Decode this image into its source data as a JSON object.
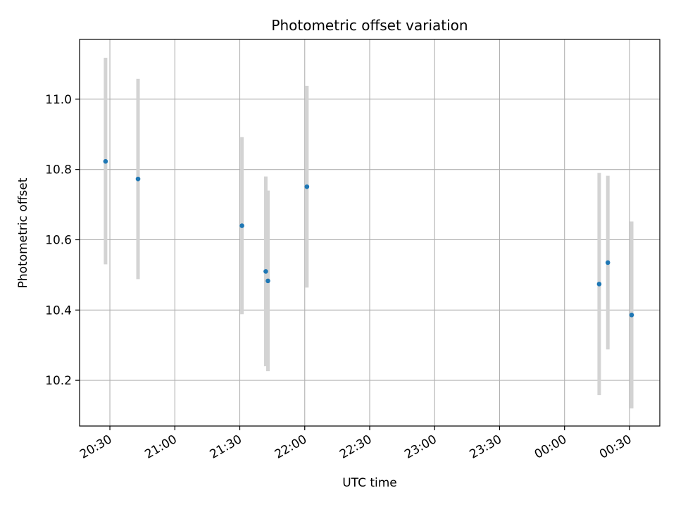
{
  "chart_data": {
    "type": "scatter",
    "title": "Photometric offset variation",
    "xlabel": "UTC time",
    "ylabel": "Photometric offset",
    "x_tick_labels": [
      "20:30",
      "21:00",
      "21:30",
      "22:00",
      "22:30",
      "23:00",
      "23:30",
      "00:00",
      "00:30"
    ],
    "y_tick_labels": [
      "10.2",
      "10.4",
      "10.6",
      "10.8",
      "11.0"
    ],
    "y_ticks": [
      10.2,
      10.4,
      10.6,
      10.8,
      11.0
    ],
    "ylim": [
      10.07,
      11.17
    ],
    "xlim": [
      "20:16",
      "00:44"
    ],
    "grid": true,
    "points": [
      {
        "x": "20:28",
        "y": 10.823,
        "err_low": 10.53,
        "err_high": 11.118
      },
      {
        "x": "20:43",
        "y": 10.773,
        "err_low": 10.488,
        "err_high": 11.058
      },
      {
        "x": "21:31",
        "y": 10.64,
        "err_low": 10.388,
        "err_high": 10.892
      },
      {
        "x": "21:42",
        "y": 10.51,
        "err_low": 10.24,
        "err_high": 10.78
      },
      {
        "x": "21:43",
        "y": 10.483,
        "err_low": 10.226,
        "err_high": 10.74
      },
      {
        "x": "22:01",
        "y": 10.751,
        "err_low": 10.464,
        "err_high": 11.038
      },
      {
        "x": "00:16",
        "y": 10.474,
        "err_low": 10.158,
        "err_high": 10.79
      },
      {
        "x": "00:20",
        "y": 10.535,
        "err_low": 10.288,
        "err_high": 10.782
      },
      {
        "x": "00:31",
        "y": 10.386,
        "err_low": 10.12,
        "err_high": 10.652
      }
    ],
    "colors": {
      "marker": "#1f77b4",
      "errorbar": "#d3d3d3",
      "grid": "#b0b0b0",
      "frame": "#000000"
    }
  }
}
